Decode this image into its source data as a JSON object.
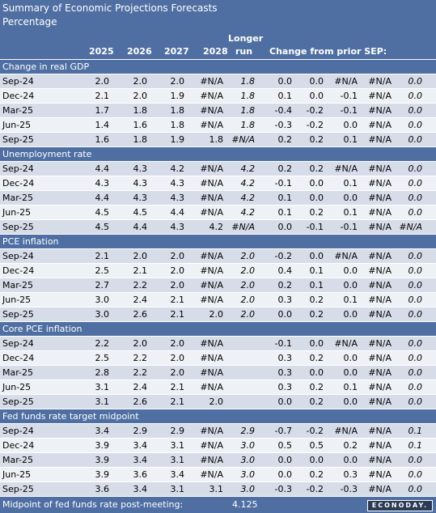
{
  "title": "Summary of Economic Projections Forecasts",
  "subtitle": "Percentage",
  "headers": {
    "y2025": "2025",
    "y2026": "2026",
    "y2027": "2027",
    "y2028": "2028",
    "longer_line1": "Longer",
    "longer_line2": "run",
    "change": "Change from prior SEP:"
  },
  "sections": [
    {
      "name": "Change in real GDP",
      "rows": [
        {
          "label": "Sep-24",
          "c2025": "2.0",
          "c2026": "2.0",
          "c2027": "2.0",
          "c2028": "#N/A",
          "lr": "1.8",
          "d1": "0.0",
          "d2": "0.0",
          "d3": "#N/A",
          "d4": "#N/A",
          "d5": "0.0"
        },
        {
          "label": "Dec-24",
          "c2025": "2.1",
          "c2026": "2.0",
          "c2027": "1.9",
          "c2028": "#N/A",
          "lr": "1.8",
          "d1": "0.1",
          "d2": "0.0",
          "d3": "-0.1",
          "d4": "#N/A",
          "d5": "0.0"
        },
        {
          "label": "Mar-25",
          "c2025": "1.7",
          "c2026": "1.8",
          "c2027": "1.8",
          "c2028": "#N/A",
          "lr": "1.8",
          "d1": "-0.4",
          "d2": "-0.2",
          "d3": "-0.1",
          "d4": "#N/A",
          "d5": "0.0"
        },
        {
          "label": "Jun-25",
          "c2025": "1.4",
          "c2026": "1.6",
          "c2027": "1.8",
          "c2028": "#N/A",
          "lr": "1.8",
          "d1": "-0.3",
          "d2": "-0.2",
          "d3": "0.0",
          "d4": "#N/A",
          "d5": "0.0"
        },
        {
          "label": "Sep-25",
          "c2025": "1.6",
          "c2026": "1.8",
          "c2027": "1.9",
          "c2028": "1.8",
          "lr": "#N/A",
          "d1": "0.2",
          "d2": "0.2",
          "d3": "0.1",
          "d4": "#N/A",
          "d5": "0.0"
        }
      ]
    },
    {
      "name": "Unemployment rate",
      "rows": [
        {
          "label": "Sep-24",
          "c2025": "4.4",
          "c2026": "4.3",
          "c2027": "4.2",
          "c2028": "#N/A",
          "lr": "4.2",
          "d1": "0.2",
          "d2": "0.2",
          "d3": "#N/A",
          "d4": "#N/A",
          "d5": "0.0"
        },
        {
          "label": "Dec-24",
          "c2025": "4.3",
          "c2026": "4.3",
          "c2027": "4.3",
          "c2028": "#N/A",
          "lr": "4.2",
          "d1": "-0.1",
          "d2": "0.0",
          "d3": "0.1",
          "d4": "#N/A",
          "d5": "0.0"
        },
        {
          "label": "Mar-25",
          "c2025": "4.4",
          "c2026": "4.3",
          "c2027": "4.3",
          "c2028": "#N/A",
          "lr": "4.2",
          "d1": "0.1",
          "d2": "0.0",
          "d3": "0.0",
          "d4": "#N/A",
          "d5": "0.0"
        },
        {
          "label": "Jun-25",
          "c2025": "4.5",
          "c2026": "4.5",
          "c2027": "4.4",
          "c2028": "#N/A",
          "lr": "4.2",
          "d1": "0.1",
          "d2": "0.2",
          "d3": "0.1",
          "d4": "#N/A",
          "d5": "0.0"
        },
        {
          "label": "Sep-25",
          "c2025": "4.5",
          "c2026": "4.4",
          "c2027": "4.3",
          "c2028": "4.2",
          "lr": "#N/A",
          "d1": "0.0",
          "d2": "-0.1",
          "d3": "-0.1",
          "d4": "#N/A",
          "d5": "#N/A"
        }
      ]
    },
    {
      "name": "PCE inflation",
      "rows": [
        {
          "label": "Sep-24",
          "c2025": "2.1",
          "c2026": "2.0",
          "c2027": "2.0",
          "c2028": "#N/A",
          "lr": "2.0",
          "d1": "-0.2",
          "d2": "0.0",
          "d3": "#N/A",
          "d4": "#N/A",
          "d5": "0.0"
        },
        {
          "label": "Dec-24",
          "c2025": "2.5",
          "c2026": "2.1",
          "c2027": "2.0",
          "c2028": "#N/A",
          "lr": "2.0",
          "d1": "0.4",
          "d2": "0.1",
          "d3": "0.0",
          "d4": "#N/A",
          "d5": "0.0"
        },
        {
          "label": "Mar-25",
          "c2025": "2.7",
          "c2026": "2.2",
          "c2027": "2.0",
          "c2028": "#N/A",
          "lr": "2.0",
          "d1": "0.2",
          "d2": "0.1",
          "d3": "0.0",
          "d4": "#N/A",
          "d5": "0.0"
        },
        {
          "label": "Jun-25",
          "c2025": "3.0",
          "c2026": "2.4",
          "c2027": "2.1",
          "c2028": "#N/A",
          "lr": "2.0",
          "d1": "0.3",
          "d2": "0.2",
          "d3": "0.1",
          "d4": "#N/A",
          "d5": "0.0"
        },
        {
          "label": "Sep-25",
          "c2025": "3.0",
          "c2026": "2.6",
          "c2027": "2.1",
          "c2028": "2.0",
          "lr": "2.0",
          "d1": "0.0",
          "d2": "0.2",
          "d3": "0.0",
          "d4": "#N/A",
          "d5": "0.0"
        }
      ]
    },
    {
      "name": "Core PCE inflation",
      "rows": [
        {
          "label": "Sep-24",
          "c2025": "2.2",
          "c2026": "2.0",
          "c2027": "2.0",
          "c2028": "#N/A",
          "lr": "",
          "d1": "-0.1",
          "d2": "0.0",
          "d3": "#N/A",
          "d4": "#N/A",
          "d5": "0.0"
        },
        {
          "label": "Dec-24",
          "c2025": "2.5",
          "c2026": "2.2",
          "c2027": "2.0",
          "c2028": "#N/A",
          "lr": "",
          "d1": "0.3",
          "d2": "0.2",
          "d3": "0.0",
          "d4": "#N/A",
          "d5": "0.0"
        },
        {
          "label": "Mar-25",
          "c2025": "2.8",
          "c2026": "2.2",
          "c2027": "2.0",
          "c2028": "#N/A",
          "lr": "",
          "d1": "0.3",
          "d2": "0.0",
          "d3": "0.0",
          "d4": "#N/A",
          "d5": "0.0"
        },
        {
          "label": "Jun-25",
          "c2025": "3.1",
          "c2026": "2.4",
          "c2027": "2.1",
          "c2028": "#N/A",
          "lr": "",
          "d1": "0.3",
          "d2": "0.2",
          "d3": "0.1",
          "d4": "#N/A",
          "d5": "0.0"
        },
        {
          "label": "Sep-25",
          "c2025": "3.1",
          "c2026": "2.6",
          "c2027": "2.1",
          "c2028": "2.0",
          "lr": "",
          "d1": "0.0",
          "d2": "0.2",
          "d3": "0.0",
          "d4": "#N/A",
          "d5": "0.0"
        }
      ]
    },
    {
      "name": "Fed funds rate target midpoint",
      "rows": [
        {
          "label": "Sep-24",
          "c2025": "3.4",
          "c2026": "2.9",
          "c2027": "2.9",
          "c2028": "#N/A",
          "lr": "2.9",
          "d1": "-0.7",
          "d2": "-0.2",
          "d3": "#N/A",
          "d4": "#N/A",
          "d5": "0.1"
        },
        {
          "label": "Dec-24",
          "c2025": "3.9",
          "c2026": "3.4",
          "c2027": "3.1",
          "c2028": "#N/A",
          "lr": "3.0",
          "d1": "0.5",
          "d2": "0.5",
          "d3": "0.2",
          "d4": "#N/A",
          "d5": "0.1"
        },
        {
          "label": "Mar-25",
          "c2025": "3.9",
          "c2026": "3.4",
          "c2027": "3.1",
          "c2028": "#N/A",
          "lr": "3.0",
          "d1": "0.0",
          "d2": "0.0",
          "d3": "0.0",
          "d4": "#N/A",
          "d5": "0.0"
        },
        {
          "label": "Jun-25",
          "c2025": "3.9",
          "c2026": "3.6",
          "c2027": "3.4",
          "c2028": "#N/A",
          "lr": "3.0",
          "d1": "0.0",
          "d2": "0.2",
          "d3": "0.3",
          "d4": "#N/A",
          "d5": "0.0"
        },
        {
          "label": "Sep-25",
          "c2025": "3.6",
          "c2026": "3.4",
          "c2027": "3.1",
          "c2028": "3.1",
          "lr": "3.0",
          "d1": "-0.3",
          "d2": "-0.2",
          "d3": "-0.3",
          "d4": "#N/A",
          "d5": "0.0"
        }
      ]
    }
  ],
  "footer": {
    "label": "Midpoint of fed funds rate post-meeting:",
    "value": "4.125",
    "logo": "ECONODAY."
  },
  "colors": {
    "header_bg": "#4f6fa3",
    "row_dark": "#d6dce8",
    "row_light": "#eef1f6"
  }
}
